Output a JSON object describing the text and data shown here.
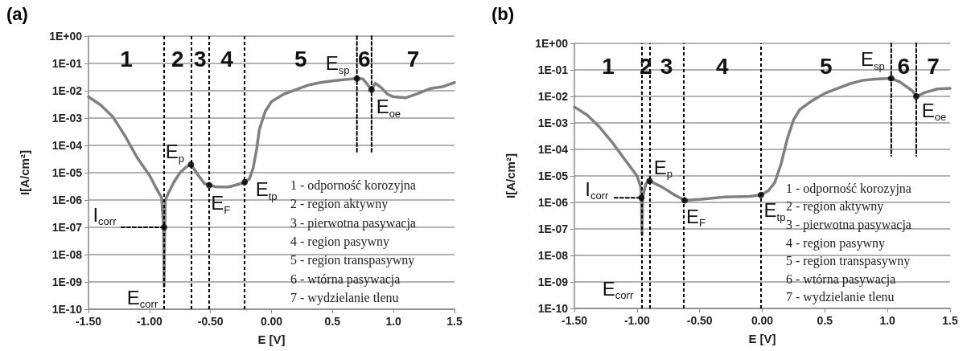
{
  "chart_data": [
    {
      "type": "line",
      "title": "(a)",
      "xlabel": "E [V]",
      "ylabel": "I[A/cm²]",
      "log": "y",
      "grid": "y",
      "xlim": [
        -1.5,
        1.5
      ],
      "xticks": [
        {
          "value": -1.5,
          "label": "-1.50"
        },
        {
          "value": -1,
          "label": "-1.00"
        },
        {
          "value": -0.5,
          "label": "-0.50"
        },
        {
          "value": 0,
          "label": "0.00"
        },
        {
          "value": 0.5,
          "label": "0.5"
        },
        {
          "value": 1,
          "label": "1.0"
        },
        {
          "value": 1.5,
          "label": "1.5"
        }
      ],
      "ylim": [
        1e-10,
        1
      ],
      "yticks": [
        {
          "value": 1,
          "label": "1E+00"
        },
        {
          "value": 0.1,
          "label": "1E-01"
        },
        {
          "value": 0.01,
          "label": "1E-02"
        },
        {
          "value": 0.001,
          "label": "1E-03"
        },
        {
          "value": 0.0001,
          "label": "1E-04"
        },
        {
          "value": 1e-05,
          "label": "1E-05"
        },
        {
          "value": 1e-06,
          "label": "1E-06"
        },
        {
          "value": 1e-07,
          "label": "1E-07"
        },
        {
          "value": 1e-08,
          "label": "1E-08"
        },
        {
          "value": 1e-09,
          "label": "1E-09"
        },
        {
          "value": 1e-10,
          "label": "1E-10"
        }
      ],
      "series": [
        {
          "color": "#808080",
          "marker": "none",
          "x": [
            -1.5,
            -1.4,
            -1.3,
            -1.2,
            -1.1,
            -1.0,
            -0.95,
            -0.9,
            -0.885,
            -0.88,
            -0.875,
            -0.87,
            -0.85,
            -0.8,
            -0.75,
            -0.7,
            -0.66,
            -0.6,
            -0.55,
            -0.51,
            -0.45,
            -0.35,
            -0.25,
            -0.22,
            -0.18,
            -0.15,
            -0.12,
            -0.1,
            -0.05,
            0.0,
            0.1,
            0.2,
            0.3,
            0.4,
            0.5,
            0.6,
            0.7,
            0.75,
            0.82,
            0.85,
            0.9,
            0.95,
            1.0,
            1.1,
            1.2,
            1.3,
            1.4,
            1.5
          ],
          "values": [
            0.006,
            0.003,
            0.0011,
            0.00022,
            3.5e-05,
            8e-06,
            3e-06,
            1.2e-06,
            1e-07,
            7e-10,
            1e-07,
            1e-06,
            1.6e-06,
            4.5e-06,
            1e-05,
            1.6e-05,
            2e-05,
            8e-06,
            4e-06,
            3.5e-06,
            3e-06,
            3e-06,
            4e-06,
            4.5e-06,
            6e-06,
            1.5e-05,
            8e-05,
            0.00038,
            0.0018,
            0.004,
            0.0075,
            0.011,
            0.016,
            0.02,
            0.023,
            0.026,
            0.028,
            0.027,
            0.011,
            0.019,
            0.013,
            0.0075,
            0.006,
            0.0055,
            0.008,
            0.012,
            0.014,
            0.02
          ]
        },
        {
          "type": "scatter",
          "color": "#000000",
          "marker": "circle",
          "x": [
            -0.88,
            -0.66,
            -0.51,
            -0.22,
            0.7,
            0.82
          ],
          "values": [
            1e-07,
            2e-05,
            3.5e-06,
            4.5e-06,
            0.028,
            0.011
          ]
        },
        {
          "color": "#000000",
          "marker": "none",
          "line_style": "dashed",
          "x": [
            -1.23,
            -0.88
          ],
          "values": [
            1e-07,
            1e-07
          ]
        },
        {
          "color": "#000000",
          "marker": "none",
          "line_style": "dashed",
          "x": [
            0.7,
            0.7
          ],
          "values": [
            1,
            5e-05
          ]
        },
        {
          "color": "#000000",
          "marker": "none",
          "line_style": "dashed",
          "x": [
            0.82,
            0.82
          ],
          "values": [
            1,
            5e-05
          ]
        }
      ],
      "ref_lines": [
        {
          "axis": "x",
          "value": -0.88,
          "color": "#000000",
          "line_style": "dashed"
        },
        {
          "axis": "x",
          "value": -0.66,
          "color": "#000000",
          "line_style": "dashed"
        },
        {
          "axis": "x",
          "value": -0.51,
          "color": "#000000",
          "line_style": "dashed"
        },
        {
          "axis": "x",
          "value": -0.22,
          "color": "#000000",
          "line_style": "dashed"
        }
      ],
      "annotations": [
        "1",
        "2",
        "3",
        "4",
        "5",
        "6",
        "7",
        {
          "text": "E$_{p}$",
          "x": -0.66,
          "y": 2e-05
        },
        {
          "text": "E$_{F}$",
          "x": -0.51,
          "y": 3.5e-06
        },
        {
          "text": "E$_{tp}$",
          "x": -0.22,
          "y": 4.5e-06
        },
        {
          "text": "E$_{sp}$",
          "x": 0.7,
          "y": 0.028
        },
        {
          "text": "E$_{oe}$",
          "x": 0.82,
          "y": 0.011
        },
        {
          "text": "I$_{corr}$",
          "x": -1.23,
          "y": 1e-07
        },
        {
          "text": "E$_{corr}$",
          "x": -0.88,
          "y": 7e-10
        },
        "1 - odporność korozyjna",
        "2 - region aktywny",
        "3 - pierwotna pasywacja",
        "4 - region pasywny",
        "5 - region transpasywny",
        "6 - wtórna pasywacja",
        "7 - wydzielanie tlenu"
      ]
    },
    {
      "type": "line",
      "title": "(b)",
      "xlabel": "E [V]",
      "ylabel": "I[A/cm²]",
      "log": "y",
      "grid": "y",
      "xlim": [
        -1.5,
        1.5
      ],
      "xticks": [
        {
          "value": -1.5,
          "label": "-1.50"
        },
        {
          "value": -1,
          "label": "-1.00"
        },
        {
          "value": -0.5,
          "label": "-0.50"
        },
        {
          "value": 0,
          "label": "0.00"
        },
        {
          "value": 0.5,
          "label": "0.5"
        },
        {
          "value": 1,
          "label": "1.0"
        },
        {
          "value": 1.5,
          "label": "1.5"
        }
      ],
      "ylim": [
        1e-10,
        1
      ],
      "yticks": [
        {
          "value": 1,
          "label": "1E+00"
        },
        {
          "value": 0.1,
          "label": "1E-01"
        },
        {
          "value": 0.01,
          "label": "1E-02"
        },
        {
          "value": 0.001,
          "label": "1E-03"
        },
        {
          "value": 0.0001,
          "label": "1E-04"
        },
        {
          "value": 1e-05,
          "label": "1E-05"
        },
        {
          "value": 1e-06,
          "label": "1E-06"
        },
        {
          "value": 1e-07,
          "label": "1E-07"
        },
        {
          "value": 1e-08,
          "label": "1E-08"
        },
        {
          "value": 1e-09,
          "label": "1E-09"
        },
        {
          "value": 1e-10,
          "label": "1E-10"
        }
      ],
      "series": [
        {
          "color": "#808080",
          "marker": "none",
          "x": [
            -1.5,
            -1.4,
            -1.3,
            -1.2,
            -1.1,
            -1.0,
            -0.97,
            -0.965,
            -0.96,
            -0.955,
            -0.93,
            -0.9,
            -0.8,
            -0.7,
            -0.62,
            -0.5,
            -0.3,
            -0.1,
            -0.01,
            0.05,
            0.1,
            0.15,
            0.2,
            0.25,
            0.3,
            0.4,
            0.5,
            0.6,
            0.7,
            0.8,
            0.9,
            1.03,
            1.1,
            1.2,
            1.23,
            1.3,
            1.4,
            1.5
          ],
          "values": [
            0.004,
            0.002,
            0.0007,
            0.00019,
            4.3e-05,
            1e-05,
            3.8e-06,
            1.5e-06,
            6e-08,
            1.5e-06,
            5e-06,
            6.5e-06,
            3.8e-06,
            1.9e-06,
            1.2e-06,
            1.3e-06,
            1.6e-06,
            1.7e-06,
            1.9e-06,
            2.8e-06,
            5.6e-06,
            2.8e-05,
            0.00025,
            0.0013,
            0.0032,
            0.007,
            0.013,
            0.02,
            0.03,
            0.04,
            0.045,
            0.048,
            0.035,
            0.016,
            0.01,
            0.014,
            0.019,
            0.02
          ]
        },
        {
          "type": "scatter",
          "color": "#000000",
          "marker": "circle",
          "x": [
            -0.965,
            -0.9,
            -0.62,
            -0.01,
            1.03,
            1.23
          ],
          "values": [
            1.5e-06,
            6.5e-06,
            1.2e-06,
            1.9e-06,
            0.048,
            0.01
          ]
        },
        {
          "color": "#000000",
          "marker": "none",
          "line_style": "dashed",
          "x": [
            -1.18,
            -0.965
          ],
          "values": [
            1.5e-06,
            1.5e-06
          ]
        },
        {
          "color": "#000000",
          "marker": "none",
          "line_style": "dashed",
          "x": [
            1.03,
            1.03
          ],
          "values": [
            1,
            5.6e-05
          ]
        },
        {
          "color": "#000000",
          "marker": "none",
          "line_style": "dashed",
          "x": [
            1.23,
            1.23
          ],
          "values": [
            1,
            5.6e-05
          ]
        }
      ],
      "ref_lines": [
        {
          "axis": "x",
          "value": -0.96,
          "color": "#000000",
          "line_style": "dashed"
        },
        {
          "axis": "x",
          "value": -0.9,
          "color": "#000000",
          "line_style": "dashed"
        },
        {
          "axis": "x",
          "value": -0.63,
          "color": "#000000",
          "line_style": "dashed"
        },
        {
          "axis": "x",
          "value": -0.01,
          "color": "#000000",
          "line_style": "dashed"
        }
      ],
      "annotations": [
        "1",
        "2",
        "3",
        "4",
        "5",
        "6",
        "7",
        {
          "text": "E$_{p}$",
          "x": -0.9,
          "y": 6.5e-06
        },
        {
          "text": "E$_{F}$",
          "x": -0.62,
          "y": 1.2e-06
        },
        {
          "text": "E$_{tp}$",
          "x": -0.01,
          "y": 1.9e-06
        },
        {
          "text": "E$_{sp}$",
          "x": 1.03,
          "y": 0.048
        },
        {
          "text": "E$_{oe}$",
          "x": 1.23,
          "y": 0.01
        },
        {
          "text": "I$_{corr}$",
          "x": -1.18,
          "y": 1.5e-06
        },
        {
          "text": "E$_{corr}$",
          "x": -0.96,
          "y": 6e-08
        },
        "1 - odporność korozyjna",
        "2 - region aktywny",
        "3 - pierwotna pasywacja",
        "4 - region pasywny",
        "5 - region transpasywny",
        "6 - wtórna pasywacja",
        "7 - wydzielanie tlenu"
      ]
    }
  ]
}
